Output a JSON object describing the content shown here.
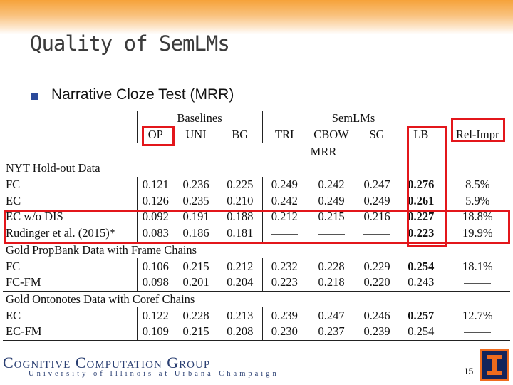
{
  "slide": {
    "title": "Quality of SemLMs",
    "bullet": "Narrative Cloze Test (MRR)",
    "page_number": "15"
  },
  "table": {
    "group_headers": {
      "baselines": "Baselines",
      "semlms": "SemLMs"
    },
    "columns": [
      "OP",
      "UNI",
      "BG",
      "TRI",
      "CBOW",
      "SG",
      "LB",
      "Rel-Impr"
    ],
    "metric": "MRR",
    "sections": [
      {
        "title": "NYT Hold-out Data",
        "rows": [
          {
            "name": "FC",
            "values": [
              "0.121",
              "0.236",
              "0.225",
              "0.249",
              "0.242",
              "0.247",
              "0.276",
              "8.5%"
            ]
          },
          {
            "name": "EC",
            "values": [
              "0.126",
              "0.235",
              "0.210",
              "0.242",
              "0.249",
              "0.249",
              "0.261",
              "5.9%"
            ]
          },
          {
            "name": "EC w/o DIS",
            "values": [
              "0.092",
              "0.191",
              "0.188",
              "0.212",
              "0.215",
              "0.216",
              "0.227",
              "18.8%"
            ]
          },
          {
            "name": "Rudinger et al. (2015)*",
            "values": [
              "0.083",
              "0.186",
              "0.181",
              "",
              "",
              "",
              "0.223",
              "19.9%"
            ]
          }
        ]
      },
      {
        "title": "Gold PropBank Data with Frame Chains",
        "rows": [
          {
            "name": "FC",
            "values": [
              "0.106",
              "0.215",
              "0.212",
              "0.232",
              "0.228",
              "0.229",
              "0.254",
              "18.1%"
            ]
          },
          {
            "name": "FC-FM",
            "values": [
              "0.098",
              "0.201",
              "0.204",
              "0.223",
              "0.218",
              "0.220",
              "0.243",
              ""
            ]
          }
        ]
      },
      {
        "title": "Gold Ontonotes Data with Coref Chains",
        "rows": [
          {
            "name": "EC",
            "values": [
              "0.122",
              "0.228",
              "0.213",
              "0.239",
              "0.247",
              "0.246",
              "0.257",
              "12.7%"
            ]
          },
          {
            "name": "EC-FM",
            "values": [
              "0.109",
              "0.215",
              "0.208",
              "0.230",
              "0.237",
              "0.239",
              "0.254",
              ""
            ]
          }
        ]
      }
    ]
  },
  "footer": {
    "logo_main": "Cognitive Computation Group",
    "logo_sub": "University of Illinois at Urbana-Champaign"
  },
  "colors": {
    "highlight": "#e3161b",
    "accent_band": "#f6a23a",
    "bullet": "#2b4a9a"
  }
}
